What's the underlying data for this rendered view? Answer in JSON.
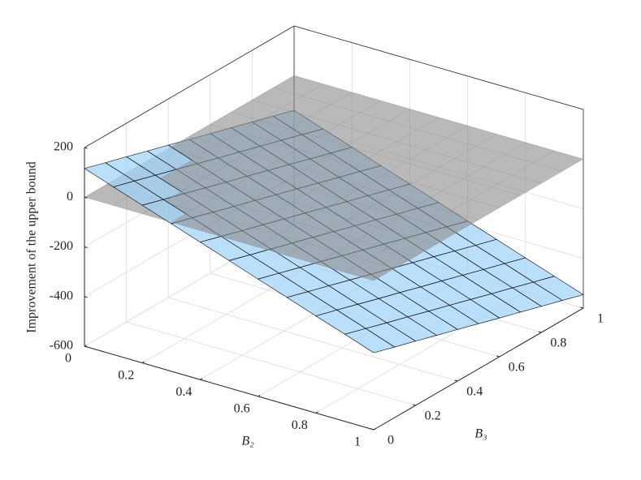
{
  "chart_data": {
    "type": "surface3d",
    "xlabel": "B₂",
    "ylabel": "B₃",
    "zlabel": "Improvement of the upper bound",
    "xlim": [
      0,
      1
    ],
    "ylim": [
      0,
      1
    ],
    "zlim": [
      -600,
      200
    ],
    "xticks": [
      0,
      0.2,
      0.4,
      0.6,
      0.8,
      1
    ],
    "yticks": [
      0,
      0.2,
      0.4,
      0.6,
      0.8,
      1
    ],
    "zticks": [
      -600,
      -400,
      -200,
      0,
      200
    ],
    "grid": true,
    "surfaces": [
      {
        "color": "#9fd2fa",
        "edgecolor": "#000000",
        "x": [
          0,
          0.1,
          0.2,
          0.3,
          0.4,
          0.5,
          0.6,
          0.7,
          0.8,
          0.9,
          1
        ],
        "y": [
          0,
          0.1,
          0.2,
          0.3,
          0.4,
          0.5,
          0.6,
          0.7,
          0.8,
          0.9,
          1
        ],
        "z": [
          [
            116,
            90,
            65,
            39,
            14,
            -12,
            -38,
            -63,
            -89,
            -114,
            -140
          ],
          [
            75,
            50,
            24,
            -1,
            -27,
            -53,
            -78,
            -104,
            -129,
            -155,
            -181
          ],
          [
            35,
            9,
            -16,
            -42,
            -68,
            -93,
            -119,
            -144,
            -170,
            -196,
            -221
          ],
          [
            -6,
            -31,
            -57,
            -83,
            -108,
            -134,
            -159,
            -185,
            -211,
            -236,
            -262
          ],
          [
            -46,
            -72,
            -98,
            -123,
            -149,
            -174,
            -200,
            -226,
            -251,
            -277,
            -302
          ],
          [
            -87,
            -113,
            -138,
            -164,
            -189,
            -215,
            -241,
            -266,
            -292,
            -317,
            -343
          ],
          [
            -128,
            -153,
            -179,
            -204,
            -230,
            -256,
            -281,
            -307,
            -332,
            -358,
            -384
          ],
          [
            -168,
            -194,
            -219,
            -245,
            -271,
            -296,
            -322,
            -347,
            -373,
            -399,
            -424
          ],
          [
            -209,
            -234,
            -260,
            -286,
            -311,
            -337,
            -362,
            -388,
            -414,
            -439,
            -465
          ],
          [
            -249,
            -275,
            -301,
            -326,
            -352,
            -377,
            -403,
            -429,
            -454,
            -480,
            -505
          ],
          [
            -290,
            -316,
            -341,
            -367,
            -392,
            -418,
            -444,
            -469,
            -495,
            -520,
            -546
          ]
        ]
      },
      {
        "color": "#8a8a8a",
        "x": [
          0,
          1
        ],
        "y": [
          0,
          1
        ],
        "z": [
          [
            0,
            0
          ],
          [
            0,
            0
          ]
        ]
      }
    ]
  }
}
